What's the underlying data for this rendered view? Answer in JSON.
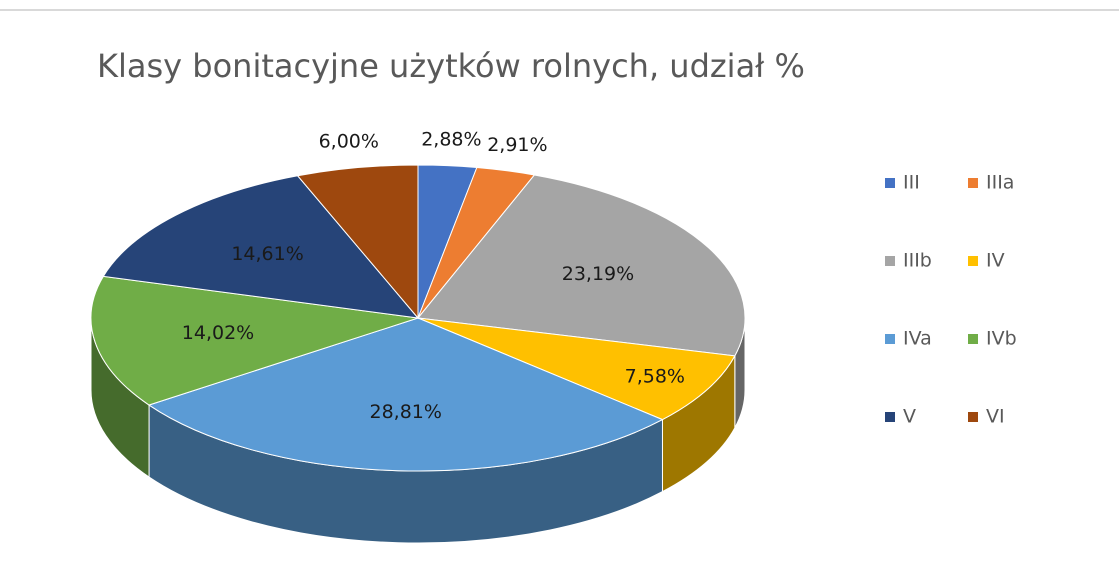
{
  "chart_data": {
    "type": "pie",
    "title": "Klasy bonitacyjne użytków rolnych, udział %",
    "categories": [
      "III",
      "IIIa",
      "IIIb",
      "IV",
      "IVa",
      "IVb",
      "V",
      "VI"
    ],
    "values": [
      2.88,
      2.91,
      23.19,
      7.58,
      28.81,
      14.02,
      14.61,
      6.0
    ],
    "value_labels": [
      "2,88%",
      "2,91%",
      "23,19%",
      "7,58%",
      "28,81%",
      "14,02%",
      "14,61%",
      "6,00%"
    ],
    "colors": [
      "#4472c4",
      "#ed7d31",
      "#a5a5a5",
      "#ffc000",
      "#5b9bd5",
      "#70ad47",
      "#264478",
      "#9e480e"
    ],
    "legend": "right"
  }
}
